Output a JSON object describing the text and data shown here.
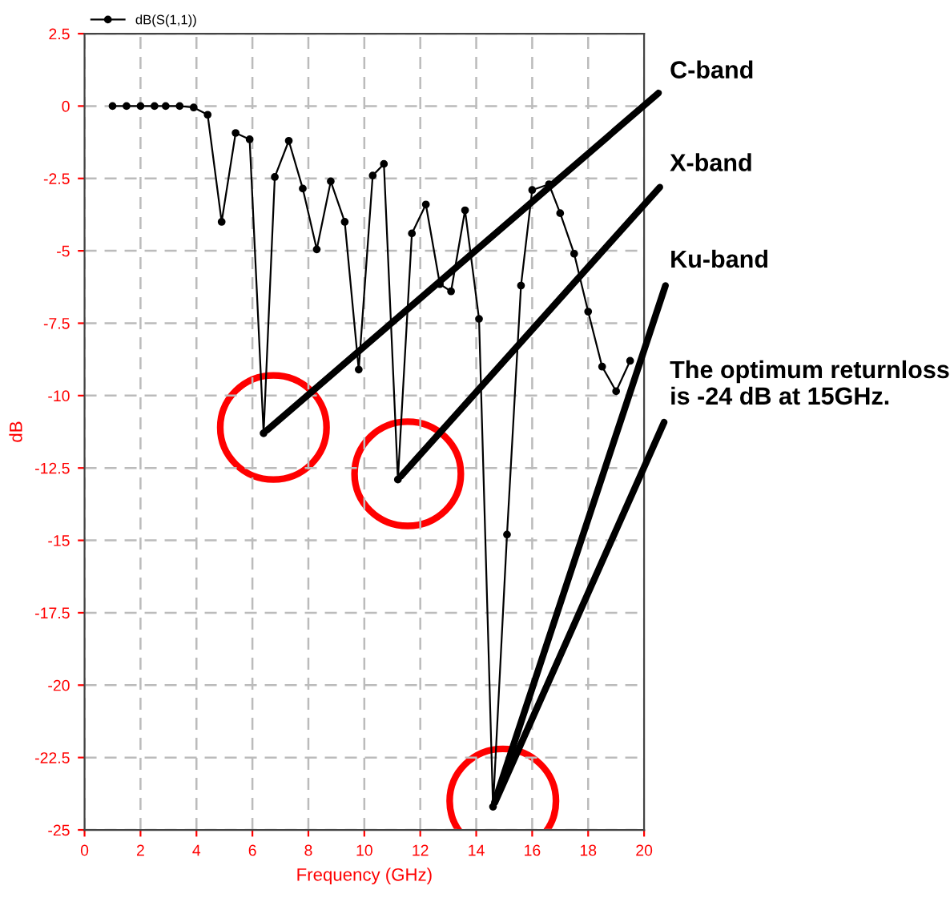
{
  "chart_data": {
    "type": "line",
    "xlabel": "Frequency (GHz)",
    "ylabel": "dB",
    "x": [
      1.0,
      1.5,
      2.0,
      2.5,
      2.9,
      3.4,
      3.9,
      4.4,
      4.9,
      5.4,
      5.9,
      6.4,
      6.8,
      7.3,
      7.8,
      8.3,
      8.8,
      9.3,
      9.8,
      10.3,
      10.7,
      11.2,
      11.7,
      12.2,
      12.7,
      13.1,
      13.6,
      14.1,
      14.6,
      15.1,
      15.6,
      16.0,
      16.6,
      17.0,
      17.5,
      18.0,
      18.5,
      19.0,
      19.5
    ],
    "series": [
      {
        "name": "dB(S(1,1))",
        "color": "#000000",
        "values": [
          0,
          0,
          0,
          0,
          0,
          0,
          -0.05,
          -0.3,
          -4.0,
          -0.93,
          -1.15,
          -11.3,
          -2.45,
          -1.2,
          -2.85,
          -4.95,
          -2.6,
          -4.0,
          -9.1,
          -2.4,
          -2.0,
          -12.9,
          -4.4,
          -3.4,
          -6.15,
          -6.4,
          -3.6,
          -7.35,
          -24.2,
          -14.8,
          -6.2,
          -2.9,
          -2.7,
          -3.7,
          -5.1,
          -7.1,
          -9.0,
          -9.85,
          -8.8
        ]
      }
    ],
    "xlim": [
      0,
      20
    ],
    "xticks": [
      0,
      2,
      4,
      6,
      8,
      10,
      12,
      14,
      16,
      18,
      20
    ],
    "ylim": [
      -25,
      2.5
    ],
    "yticks": [
      2.5,
      0,
      -2.5,
      -5,
      -7.5,
      -10,
      -12.5,
      -15,
      -17.5,
      -20,
      -22.5,
      -25
    ],
    "grid": true,
    "legend": "top left",
    "marker": "circle",
    "line_style": "solid",
    "annotations": [
      {
        "text": "C-band",
        "x": 6.4,
        "y": -11.3
      },
      {
        "text": "X-band",
        "x": 11.2,
        "y": -12.9
      },
      {
        "text": "Ku-band",
        "x": 14.6,
        "y": -24.2
      },
      {
        "text": "The optimum returnloss\nis -24 dB at 15GHz.",
        "x": 14.6,
        "y": -24.2
      }
    ]
  }
}
